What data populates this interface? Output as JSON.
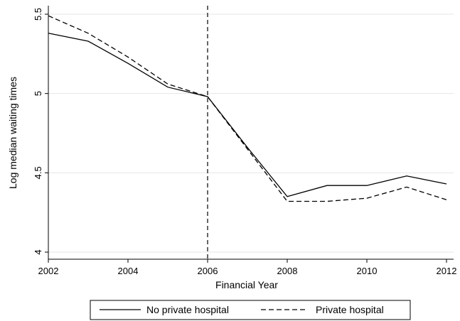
{
  "chart_data": {
    "type": "line",
    "title": "",
    "xlabel": "Financial Year",
    "ylabel": "Log median waiting times",
    "xlim": [
      2002,
      2012
    ],
    "ylim": [
      4,
      5.5
    ],
    "x_ticks": [
      2002,
      2004,
      2006,
      2008,
      2010,
      2012
    ],
    "y_ticks": [
      4,
      4.5,
      5,
      5.5
    ],
    "y_tick_labels": [
      "4",
      "4.5",
      "5",
      "5.5"
    ],
    "grid": "horizontal",
    "reference_line": {
      "x": 2006,
      "style": "dashed"
    },
    "legend_position": "bottom",
    "x": [
      2002,
      2003,
      2004,
      2005,
      2006,
      2007,
      2008,
      2009,
      2010,
      2011,
      2012
    ],
    "series": [
      {
        "name": "No private hospital",
        "style": "solid",
        "values": [
          5.38,
          5.33,
          5.19,
          5.04,
          4.98,
          4.66,
          4.35,
          4.42,
          4.42,
          4.48,
          4.43
        ]
      },
      {
        "name": "Private hospital",
        "style": "dashed",
        "values": [
          5.49,
          5.38,
          5.23,
          5.06,
          4.98,
          4.65,
          4.32,
          4.32,
          4.34,
          4.41,
          4.33
        ]
      }
    ],
    "colors": {
      "line": "#000000",
      "grid": "#e6e6e6"
    }
  }
}
